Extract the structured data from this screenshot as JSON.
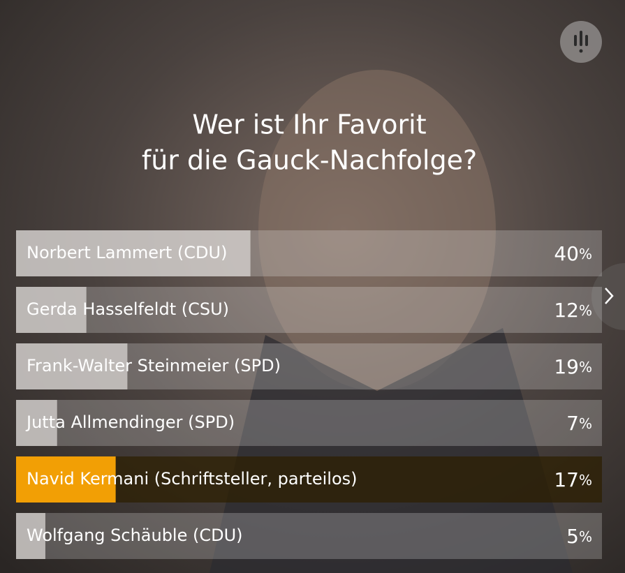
{
  "chart_data": {
    "type": "poll",
    "title": [
      "Wer ist Ihr Favorit",
      "für die Gauck-Nachfolge?"
    ],
    "categories": [
      "Norbert Lammert (CDU)",
      "Gerda Hasselfeldt (CSU)",
      "Frank-Walter Steinmeier (SPD)",
      "Jutta Allmendinger (SPD)",
      "Navid Kermani (Schriftsteller, parteilos)",
      "Wolfgang Schäuble (CDU)"
    ],
    "values": [
      40,
      12,
      19,
      7,
      17,
      5
    ],
    "value_labels": [
      "40%",
      "12%",
      "19%",
      "7%",
      "17%",
      "5%"
    ],
    "colors": [
      "#d8d4d2",
      "#d8d4d2",
      "#d8d4d2",
      "#d8d4d2",
      "#f29f05",
      "#d8d4d2"
    ],
    "xlim": [
      0,
      100
    ]
  }
}
